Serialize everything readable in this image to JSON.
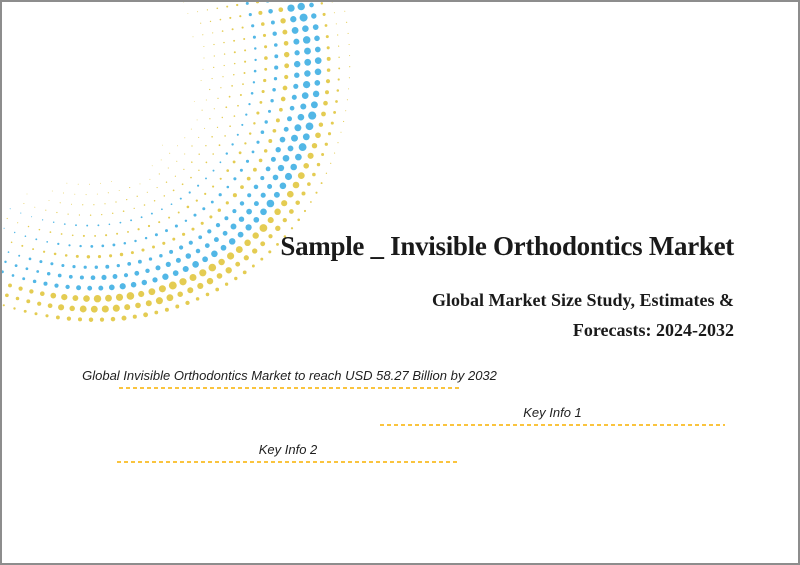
{
  "page": {
    "background": "#ffffff",
    "border_color": "#8d8d8d"
  },
  "header": {
    "title": "Sample _ Invisible Orthodontics Market",
    "subtitle_line1": "Global Market Size Study, Estimates &",
    "subtitle_line2": "Forecasts: 2024-2032"
  },
  "key_info": {
    "underline_color": "#fac43e",
    "items": [
      {
        "label": "Global Invisible Orthodontics Market to reach USD 58.27 Billion by 2032"
      },
      {
        "label": "Key Info 1"
      },
      {
        "label": "Key Info 2"
      }
    ]
  },
  "decoration": {
    "name": "halftone-swirl",
    "dot_blue": "#52b7e6",
    "dot_yellow": "#e4cc52"
  }
}
